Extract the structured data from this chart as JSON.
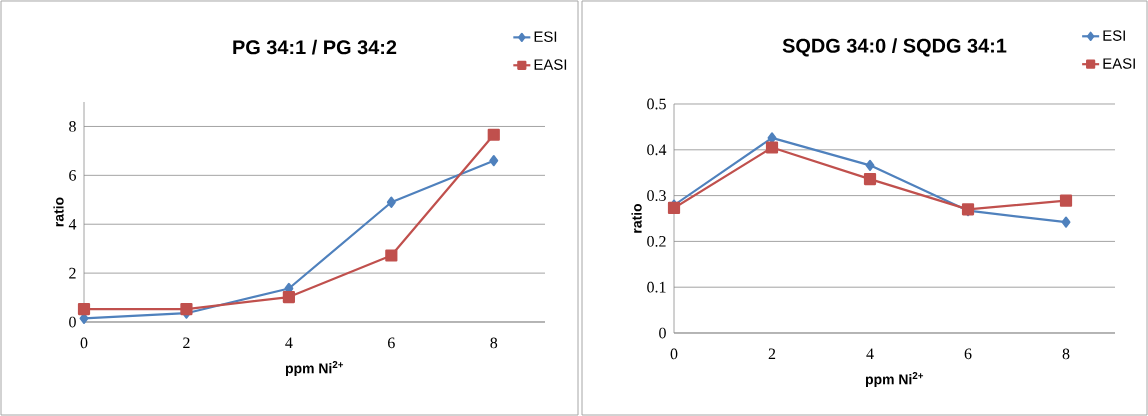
{
  "chart_data": [
    {
      "type": "line",
      "title": "PG 34:1 / PG 34:2",
      "xlabel": "ppm Ni$^{2+}$",
      "ylabel": "ratio",
      "x": [
        0,
        2,
        4,
        6,
        8
      ],
      "xlim": [
        0,
        9
      ],
      "xticks": [
        0,
        2,
        4,
        6,
        8
      ],
      "ylim": [
        0,
        9
      ],
      "yticks": [
        0,
        2,
        4,
        6,
        8
      ],
      "grid": "y",
      "legend": "top right",
      "line_style": "solid",
      "series": [
        {
          "name": "ESI",
          "color": "#4f81bd",
          "marker": "diamond",
          "values": [
            0.15,
            0.36,
            1.37,
            4.9,
            6.6
          ]
        },
        {
          "name": "EASI",
          "color": "#c0504d",
          "marker": "square",
          "values": [
            0.53,
            0.53,
            1.02,
            2.72,
            7.66
          ]
        }
      ]
    },
    {
      "type": "line",
      "title": "SQDG 34:0 / SQDG 34:1",
      "xlabel": "ppm Ni$^{2+}$",
      "ylabel": "ratio",
      "x": [
        0,
        2,
        4,
        6,
        8
      ],
      "xlim": [
        0,
        9
      ],
      "xticks": [
        0,
        2,
        4,
        6,
        8
      ],
      "ylim": [
        0,
        0.5
      ],
      "yticks": [
        0,
        0.1,
        0.2,
        0.3,
        0.4,
        0.5
      ],
      "grid": "y",
      "legend": "top right",
      "line_style": "solid",
      "series": [
        {
          "name": "ESI",
          "color": "#4f81bd",
          "marker": "diamond",
          "values": [
            0.279,
            0.426,
            0.366,
            0.267,
            0.242
          ]
        },
        {
          "name": "EASI",
          "color": "#c0504d",
          "marker": "square",
          "values": [
            0.273,
            0.405,
            0.336,
            0.27,
            0.289
          ]
        }
      ]
    }
  ]
}
